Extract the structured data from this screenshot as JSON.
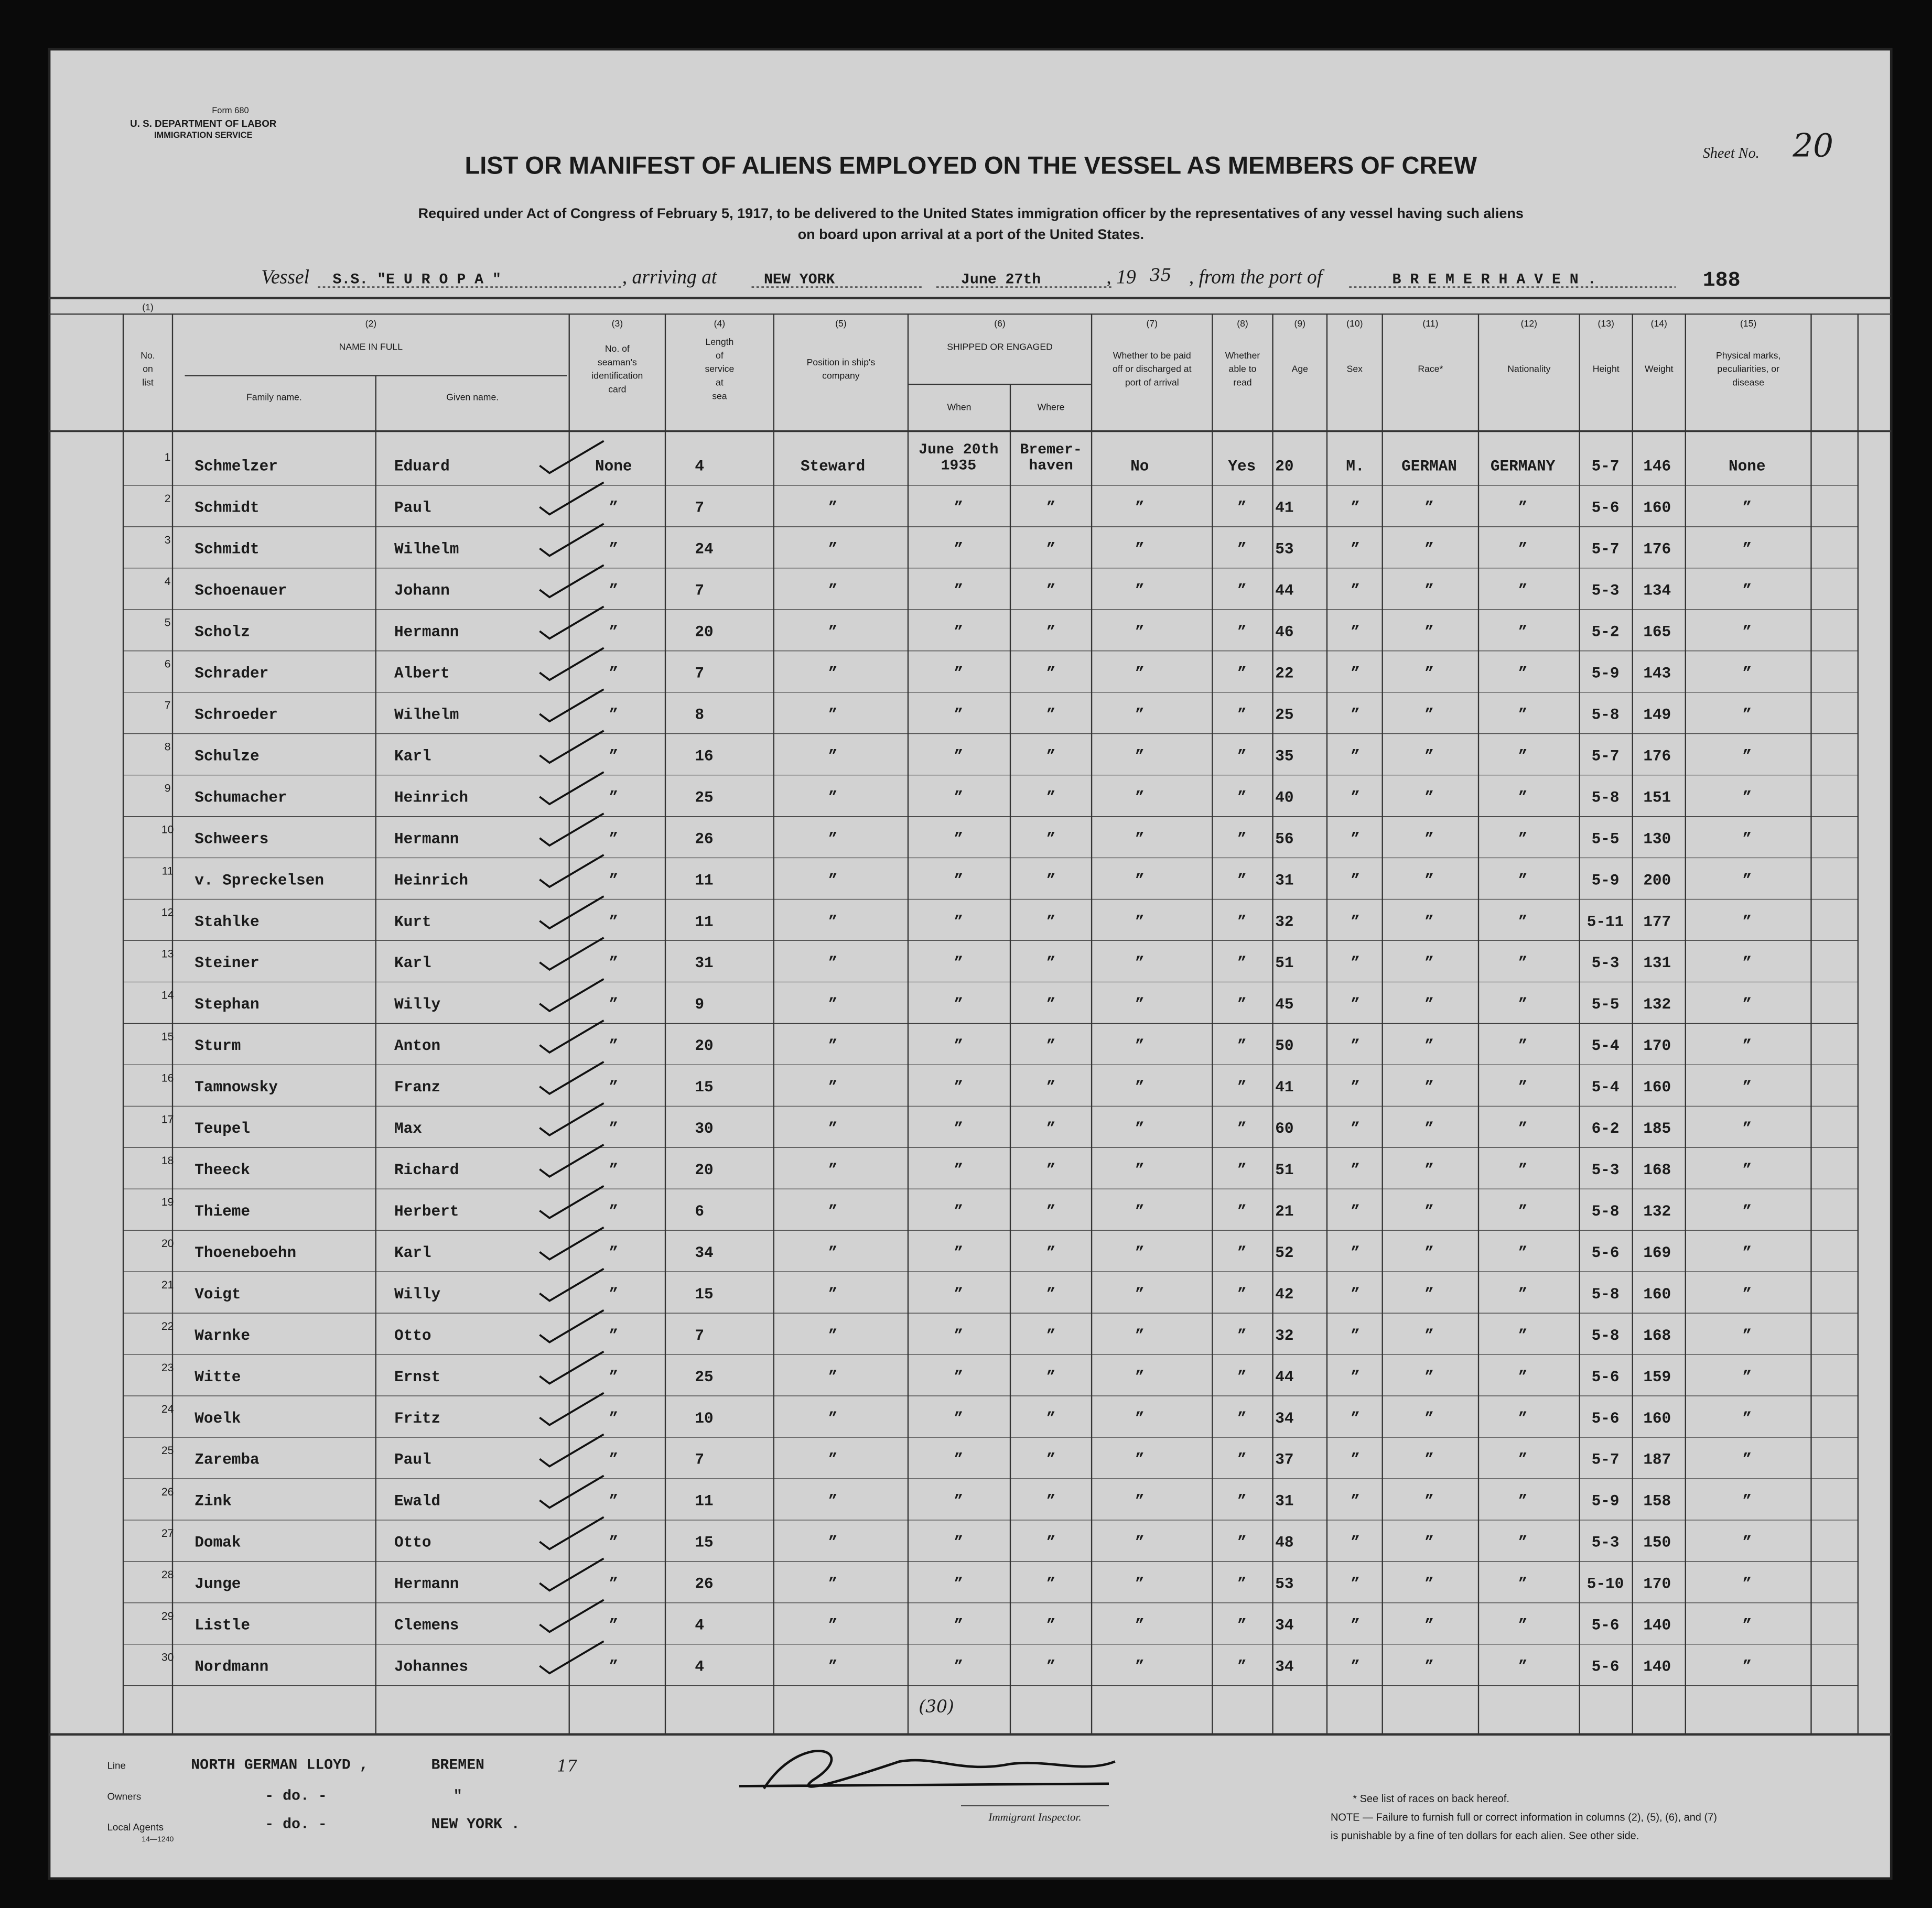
{
  "form": {
    "form_no": "Form 680",
    "department": "U. S. DEPARTMENT OF LABOR",
    "service": "IMMIGRATION SERVICE",
    "sheet_label": "Sheet No.",
    "sheet_no": "20"
  },
  "title": "LIST OR MANIFEST OF ALIENS EMPLOYED ON THE VESSEL AS MEMBERS OF CREW",
  "subtitle_lines": [
    "Required under Act of Congress of February 5, 1917, to be delivered to the United States immigration officer by the representatives of any vessel having such aliens",
    "on board upon arrival at a port of the United States."
  ],
  "voyage": {
    "vessel_label": "Vessel",
    "vessel": "S.S. \"E U R O P A \"",
    "arriving_label": ", arriving at",
    "port": "NEW YORK",
    "date": "June 27th",
    "year_label": ", 19",
    "year": "35",
    "from_label": ", from the port of",
    "from_port": "B R E M E R H A V E N .",
    "number": "188"
  },
  "columns": [
    {
      "num": "(1)",
      "label": [
        "No.",
        "on",
        "list"
      ]
    },
    {
      "num": "(2)",
      "label": [
        "NAME IN FULL"
      ],
      "sub": [
        "Family name.",
        "Given name."
      ]
    },
    {
      "num": "(3)",
      "label": [
        "No. of",
        "seaman's",
        "identification",
        "card"
      ]
    },
    {
      "num": "(4)",
      "label": [
        "Length",
        "of",
        "service",
        "at",
        "sea"
      ]
    },
    {
      "num": "(5)",
      "label": [
        "Position in ship's",
        "company"
      ]
    },
    {
      "num": "(6)",
      "label": [
        "SHIPPED OR ENGAGED"
      ],
      "sub": [
        "When",
        "Where"
      ]
    },
    {
      "num": "(7)",
      "label": [
        "Whether to be paid",
        "off or discharged at",
        "port of arrival"
      ]
    },
    {
      "num": "(8)",
      "label": [
        "Whether",
        "able to",
        "read"
      ]
    },
    {
      "num": "(9)",
      "label": [
        "Age"
      ]
    },
    {
      "num": "(10)",
      "label": [
        "Sex"
      ]
    },
    {
      "num": "(11)",
      "label": [
        "Race*"
      ]
    },
    {
      "num": "(12)",
      "label": [
        "Nationality"
      ]
    },
    {
      "num": "(13)",
      "label": [
        "Height"
      ]
    },
    {
      "num": "(14)",
      "label": [
        "Weight"
      ]
    },
    {
      "num": "(15)",
      "label": [
        "Physical marks,",
        "peculiarities, or",
        "disease"
      ]
    }
  ],
  "rows": [
    [
      "1",
      "Schmelzer",
      "Eduard",
      "None",
      "4",
      "Steward",
      [
        "June 20th",
        "1935"
      ],
      [
        "Bremer-",
        "haven"
      ],
      "No",
      "Yes",
      "20",
      "M.",
      "GERMAN",
      "GERMANY",
      "5-7",
      "146",
      "None"
    ],
    [
      "2",
      "Schmidt",
      "Paul",
      "”",
      "7",
      "”",
      "”",
      "”",
      "”",
      "”",
      "41",
      "”",
      "”",
      "”",
      "5-6",
      "160",
      "”"
    ],
    [
      "3",
      "Schmidt",
      "Wilhelm",
      "”",
      "24",
      "”",
      "”",
      "”",
      "”",
      "”",
      "53",
      "”",
      "”",
      "”",
      "5-7",
      "176",
      "”"
    ],
    [
      "4",
      "Schoenauer",
      "Johann",
      "”",
      "7",
      "”",
      "”",
      "”",
      "”",
      "”",
      "44",
      "”",
      "”",
      "”",
      "5-3",
      "134",
      "”"
    ],
    [
      "5",
      "Scholz",
      "Hermann",
      "”",
      "20",
      "”",
      "”",
      "”",
      "”",
      "”",
      "46",
      "”",
      "”",
      "”",
      "5-2",
      "165",
      "”"
    ],
    [
      "6",
      "Schrader",
      "Albert",
      "”",
      "7",
      "”",
      "”",
      "”",
      "”",
      "”",
      "22",
      "”",
      "”",
      "”",
      "5-9",
      "143",
      "”"
    ],
    [
      "7",
      "Schroeder",
      "Wilhelm",
      "”",
      "8",
      "”",
      "”",
      "”",
      "”",
      "”",
      "25",
      "”",
      "”",
      "”",
      "5-8",
      "149",
      "”"
    ],
    [
      "8",
      "Schulze",
      "Karl",
      "”",
      "16",
      "”",
      "”",
      "”",
      "”",
      "”",
      "35",
      "”",
      "”",
      "”",
      "5-7",
      "176",
      "”"
    ],
    [
      "9",
      "Schumacher",
      "Heinrich",
      "”",
      "25",
      "”",
      "”",
      "”",
      "”",
      "”",
      "40",
      "”",
      "”",
      "”",
      "5-8",
      "151",
      "”"
    ],
    [
      "10",
      "Schweers",
      "Hermann",
      "”",
      "26",
      "”",
      "”",
      "”",
      "”",
      "”",
      "56",
      "”",
      "”",
      "”",
      "5-5",
      "130",
      "”"
    ],
    [
      "11",
      "v. Spreckelsen",
      "Heinrich",
      "”",
      "11",
      "”",
      "”",
      "”",
      "”",
      "”",
      "31",
      "”",
      "”",
      "”",
      "5-9",
      "200",
      "”"
    ],
    [
      "12",
      "Stahlke",
      "Kurt",
      "”",
      "11",
      "”",
      "”",
      "”",
      "”",
      "”",
      "32",
      "”",
      "”",
      "”",
      "5-11",
      "177",
      "”"
    ],
    [
      "13",
      "Steiner",
      "Karl",
      "”",
      "31",
      "”",
      "”",
      "”",
      "”",
      "”",
      "51",
      "”",
      "”",
      "”",
      "5-3",
      "131",
      "”"
    ],
    [
      "14",
      "Stephan",
      "Willy",
      "”",
      "9",
      "”",
      "”",
      "”",
      "”",
      "”",
      "45",
      "”",
      "”",
      "”",
      "5-5",
      "132",
      "”"
    ],
    [
      "15",
      "Sturm",
      "Anton",
      "”",
      "20",
      "”",
      "”",
      "”",
      "”",
      "”",
      "50",
      "”",
      "”",
      "”",
      "5-4",
      "170",
      "”"
    ],
    [
      "16",
      "Tamnowsky",
      "Franz",
      "”",
      "15",
      "”",
      "”",
      "”",
      "”",
      "”",
      "41",
      "”",
      "”",
      "”",
      "5-4",
      "160",
      "”"
    ],
    [
      "17",
      "Teupel",
      "Max",
      "”",
      "30",
      "”",
      "”",
      "”",
      "”",
      "”",
      "60",
      "”",
      "”",
      "”",
      "6-2",
      "185",
      "”"
    ],
    [
      "18",
      "Theeck",
      "Richard",
      "”",
      "20",
      "”",
      "”",
      "”",
      "”",
      "”",
      "51",
      "”",
      "”",
      "”",
      "5-3",
      "168",
      "”"
    ],
    [
      "19",
      "Thieme",
      "Herbert",
      "”",
      "6",
      "”",
      "”",
      "”",
      "”",
      "”",
      "21",
      "”",
      "”",
      "”",
      "5-8",
      "132",
      "”"
    ],
    [
      "20",
      "Thoeneboehn",
      "Karl",
      "”",
      "34",
      "”",
      "”",
      "”",
      "”",
      "”",
      "52",
      "”",
      "”",
      "”",
      "5-6",
      "169",
      "”"
    ],
    [
      "21",
      "Voigt",
      "Willy",
      "”",
      "15",
      "”",
      "”",
      "”",
      "”",
      "”",
      "42",
      "”",
      "”",
      "”",
      "5-8",
      "160",
      "”"
    ],
    [
      "22",
      "Warnke",
      "Otto",
      "”",
      "7",
      "”",
      "”",
      "”",
      "”",
      "”",
      "32",
      "”",
      "”",
      "”",
      "5-8",
      "168",
      "”"
    ],
    [
      "23",
      "Witte",
      "Ernst",
      "”",
      "25",
      "”",
      "”",
      "”",
      "”",
      "”",
      "44",
      "”",
      "”",
      "”",
      "5-6",
      "159",
      "”"
    ],
    [
      "24",
      "Woelk",
      "Fritz",
      "”",
      "10",
      "”",
      "”",
      "”",
      "”",
      "”",
      "34",
      "”",
      "”",
      "”",
      "5-6",
      "160",
      "”"
    ],
    [
      "25",
      "Zaremba",
      "Paul",
      "”",
      "7",
      "”",
      "”",
      "”",
      "”",
      "”",
      "37",
      "”",
      "”",
      "”",
      "5-7",
      "187",
      "”"
    ],
    [
      "26",
      "Zink",
      "Ewald",
      "”",
      "11",
      "”",
      "”",
      "”",
      "”",
      "”",
      "31",
      "”",
      "”",
      "”",
      "5-9",
      "158",
      "”"
    ],
    [
      "27",
      "Domak",
      "Otto",
      "”",
      "15",
      "”",
      "”",
      "”",
      "”",
      "”",
      "48",
      "”",
      "”",
      "”",
      "5-3",
      "150",
      "”"
    ],
    [
      "28",
      "Junge",
      "Hermann",
      "”",
      "26",
      "”",
      "”",
      "”",
      "”",
      "”",
      "53",
      "”",
      "”",
      "”",
      "5-10",
      "170",
      "”"
    ],
    [
      "29",
      "Listle",
      "Clemens",
      "”",
      "4",
      "”",
      "”",
      "”",
      "”",
      "”",
      "34",
      "”",
      "”",
      "”",
      "5-6",
      "140",
      "”"
    ],
    [
      "30",
      "Nordmann",
      "Johannes",
      "”",
      "4",
      "”",
      "”",
      "”",
      "”",
      "”",
      "34",
      "”",
      "”",
      "”",
      "5-6",
      "140",
      "”"
    ]
  ],
  "total": "(30)",
  "footer": {
    "line_label": "Line",
    "line": "NORTH GERMAN LLOYD ,",
    "line_city": "BREMEN",
    "line_note": "17",
    "owners_label": "Owners",
    "owners": "- do. -",
    "owners_city": "\"",
    "agents_label": "Local Agents",
    "agents": "- do. -",
    "agents_city": "NEW YORK .",
    "print_code": "14—1240",
    "inspector_label": "Immigrant Inspector.",
    "note_lines": [
      "* See list of races on back hereof.",
      "NOTE — Failure to furnish full or correct information in columns (2), (5), (6), and (7)",
      "is punishable by a fine of ten dollars for each alien.  See other side."
    ]
  }
}
